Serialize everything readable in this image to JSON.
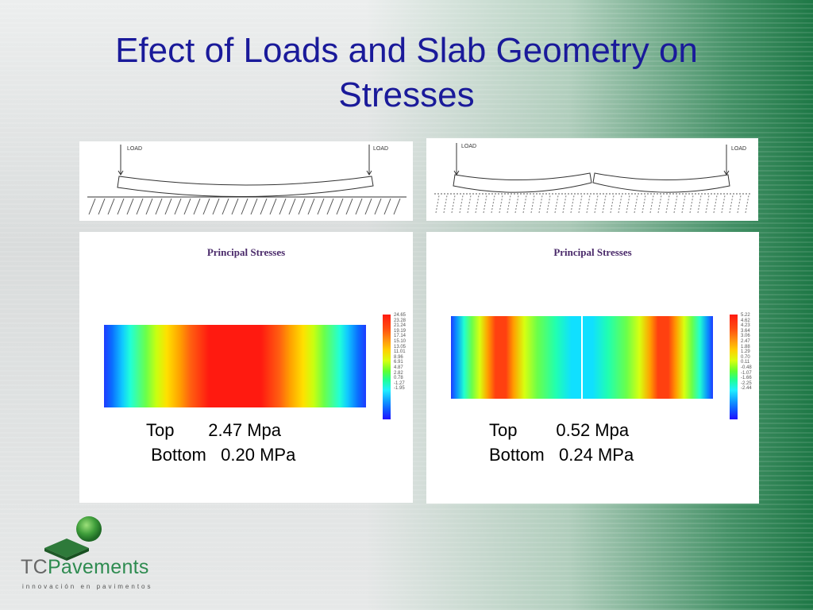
{
  "title": "Efect of Loads and Slab Geometry on Stresses",
  "diagrams": {
    "left": {
      "load_labels": [
        "LOAD",
        "LOAD"
      ]
    },
    "right": {
      "load_labels": [
        "LOAD",
        "LOAD"
      ]
    }
  },
  "plots": {
    "left": {
      "title": "Principal Stresses",
      "legend": [
        "24.65",
        "23.28",
        "21.24",
        "19.19",
        "17.14",
        "15.10",
        "13.05",
        "11.01",
        "8.96",
        "6.91",
        "4.87",
        "2.82",
        "0.78",
        "-1.27",
        "-1.95"
      ],
      "stress_text": "Top       2.47 Mpa\n Bottom   0.20 MPa"
    },
    "right": {
      "title": "Principal Stresses",
      "legend": [
        "5.22",
        "4.62",
        "4.23",
        "3.64",
        "3.06",
        "2.47",
        "1.88",
        "1.29",
        "0.70",
        "0.11",
        "-0.48",
        "-1.07",
        "-1.66",
        "-2.25",
        "-2.44"
      ],
      "stress_text": "Top        0.52 Mpa\nBottom   0.24 MPa"
    }
  },
  "logo": {
    "brand_prefix": "TC",
    "brand_suffix": "Pavements",
    "tagline": "innovación en pavimentos"
  },
  "colors": {
    "title": "#1a1a9a",
    "brand_green": "#2e8b50"
  }
}
